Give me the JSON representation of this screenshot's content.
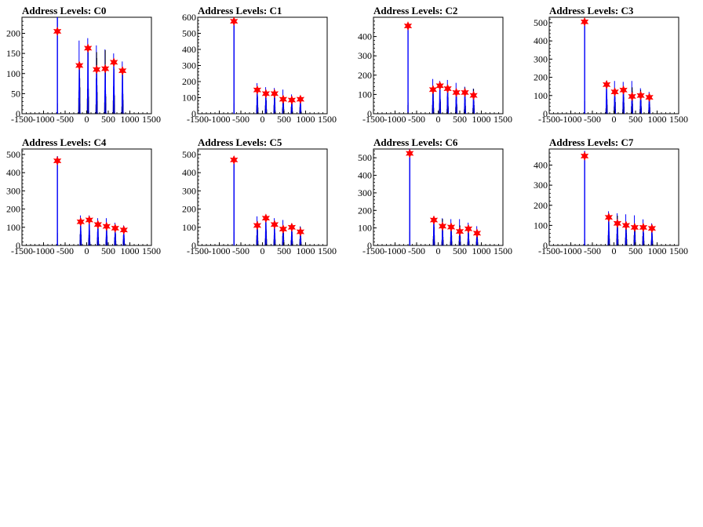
{
  "figure": {
    "background": "#ffffff",
    "raw_color": "#000000",
    "smoothed_color": "#0000ff",
    "marker_color": "#ff0000",
    "marker_shape": "star"
  },
  "chart_data": [
    {
      "type": "histogram",
      "title": "Address Levels: C0",
      "xlim": [
        -1500,
        1500
      ],
      "ylim": [
        0,
        240
      ],
      "x_ticks": [
        "-1500",
        "-1000",
        "-500",
        "0",
        "500",
        "1000",
        "1500"
      ],
      "x_tick_values": [
        -1500,
        -1000,
        -500,
        0,
        500,
        1000,
        1500
      ],
      "y_ticks": [
        "0",
        "50",
        "100",
        "150",
        "200"
      ],
      "y_tick_values": [
        0,
        50,
        100,
        150,
        200
      ],
      "peaks": [
        {
          "x": -680,
          "y": 240,
          "marker_y": 205
        },
        {
          "x": -170,
          "y": 182,
          "marker_y": 120
        },
        {
          "x": 30,
          "y": 188,
          "marker_y": 163
        },
        {
          "x": 230,
          "y": 170,
          "marker_y": 110
        },
        {
          "x": 430,
          "y": 160,
          "marker_y": 112
        },
        {
          "x": 630,
          "y": 150,
          "marker_y": 128
        },
        {
          "x": 830,
          "y": 130,
          "marker_y": 107
        }
      ]
    },
    {
      "type": "histogram",
      "title": "Address Levels: C1",
      "xlim": [
        -1500,
        1500
      ],
      "ylim": [
        0,
        600
      ],
      "x_ticks": [
        "-1500",
        "-1000",
        "-500",
        "0",
        "500",
        "1000",
        "1500"
      ],
      "x_tick_values": [
        -1500,
        -1000,
        -500,
        0,
        500,
        1000,
        1500
      ],
      "y_ticks": [
        "0",
        "100",
        "200",
        "300",
        "400",
        "500",
        "600"
      ],
      "y_tick_values": [
        0,
        100,
        200,
        300,
        400,
        500,
        600
      ],
      "peaks": [
        {
          "x": -660,
          "y": 580,
          "marker_y": 575
        },
        {
          "x": -120,
          "y": 190,
          "marker_y": 148
        },
        {
          "x": 80,
          "y": 165,
          "marker_y": 125
        },
        {
          "x": 280,
          "y": 160,
          "marker_y": 125
        },
        {
          "x": 480,
          "y": 150,
          "marker_y": 90
        },
        {
          "x": 680,
          "y": 120,
          "marker_y": 85
        },
        {
          "x": 880,
          "y": 110,
          "marker_y": 90
        }
      ]
    },
    {
      "type": "histogram",
      "title": "Address Levels: C2",
      "xlim": [
        -1500,
        1500
      ],
      "ylim": [
        0,
        500
      ],
      "x_ticks": [
        "-1500",
        "-1000",
        "-500",
        "0",
        "500",
        "1000",
        "1500"
      ],
      "x_tick_values": [
        -1500,
        -1000,
        -500,
        0,
        500,
        1000,
        1500
      ],
      "y_ticks": [
        "0",
        "100",
        "200",
        "300",
        "400"
      ],
      "y_tick_values": [
        0,
        100,
        200,
        300,
        400
      ],
      "peaks": [
        {
          "x": -700,
          "y": 470,
          "marker_y": 455
        },
        {
          "x": -120,
          "y": 180,
          "marker_y": 125
        },
        {
          "x": 40,
          "y": 170,
          "marker_y": 145
        },
        {
          "x": 220,
          "y": 175,
          "marker_y": 130
        },
        {
          "x": 420,
          "y": 160,
          "marker_y": 110
        },
        {
          "x": 620,
          "y": 140,
          "marker_y": 110
        },
        {
          "x": 820,
          "y": 130,
          "marker_y": 95
        }
      ]
    },
    {
      "type": "histogram",
      "title": "Address Levels: C3",
      "xlim": [
        -1500,
        1500
      ],
      "ylim": [
        0,
        530
      ],
      "x_ticks": [
        "-1500",
        "-1000",
        "-500",
        "0",
        "500",
        "1000",
        "1500"
      ],
      "x_tick_values": [
        -1500,
        -1000,
        -500,
        0,
        500,
        1000,
        1500
      ],
      "y_ticks": [
        "0",
        "100",
        "200",
        "300",
        "400",
        "500"
      ],
      "y_tick_values": [
        0,
        100,
        200,
        300,
        400,
        500
      ],
      "peaks": [
        {
          "x": -680,
          "y": 520,
          "marker_y": 505
        },
        {
          "x": -170,
          "y": 180,
          "marker_y": 160
        },
        {
          "x": 20,
          "y": 180,
          "marker_y": 120
        },
        {
          "x": 220,
          "y": 175,
          "marker_y": 130
        },
        {
          "x": 420,
          "y": 180,
          "marker_y": 95
        },
        {
          "x": 620,
          "y": 140,
          "marker_y": 100
        },
        {
          "x": 820,
          "y": 120,
          "marker_y": 90
        }
      ]
    },
    {
      "type": "histogram",
      "title": "Address Levels: C4",
      "xlim": [
        -1500,
        1500
      ],
      "ylim": [
        0,
        530
      ],
      "x_ticks": [
        "-1500",
        "-1000",
        "-500",
        "0",
        "500",
        "1000",
        "1500"
      ],
      "x_tick_values": [
        -1500,
        -1000,
        -500,
        0,
        500,
        1000,
        1500
      ],
      "y_ticks": [
        "0",
        "100",
        "200",
        "300",
        "400",
        "500"
      ],
      "y_tick_values": [
        0,
        100,
        200,
        300,
        400,
        500
      ],
      "peaks": [
        {
          "x": -680,
          "y": 490,
          "marker_y": 465
        },
        {
          "x": -140,
          "y": 165,
          "marker_y": 130
        },
        {
          "x": 60,
          "y": 165,
          "marker_y": 140
        },
        {
          "x": 260,
          "y": 150,
          "marker_y": 115
        },
        {
          "x": 460,
          "y": 150,
          "marker_y": 105
        },
        {
          "x": 660,
          "y": 125,
          "marker_y": 95
        },
        {
          "x": 860,
          "y": 110,
          "marker_y": 85
        }
      ]
    },
    {
      "type": "histogram",
      "title": "Address Levels: C5",
      "xlim": [
        -1500,
        1500
      ],
      "ylim": [
        0,
        530
      ],
      "x_ticks": [
        "-1500",
        "-1000",
        "-500",
        "0",
        "500",
        "1000",
        "1500"
      ],
      "x_tick_values": [
        -1500,
        -1000,
        -500,
        0,
        500,
        1000,
        1500
      ],
      "y_ticks": [
        "0",
        "100",
        "200",
        "300",
        "400",
        "500"
      ],
      "y_tick_values": [
        0,
        100,
        200,
        300,
        400,
        500
      ],
      "peaks": [
        {
          "x": -660,
          "y": 490,
          "marker_y": 470
        },
        {
          "x": -120,
          "y": 160,
          "marker_y": 110
        },
        {
          "x": 80,
          "y": 165,
          "marker_y": 150
        },
        {
          "x": 280,
          "y": 150,
          "marker_y": 115
        },
        {
          "x": 480,
          "y": 140,
          "marker_y": 90
        },
        {
          "x": 680,
          "y": 120,
          "marker_y": 100
        },
        {
          "x": 880,
          "y": 105,
          "marker_y": 75
        }
      ]
    },
    {
      "type": "histogram",
      "title": "Address Levels: C6",
      "xlim": [
        -1500,
        1500
      ],
      "ylim": [
        0,
        550
      ],
      "x_ticks": [
        "-1500",
        "-1000",
        "-500",
        "0",
        "500",
        "1000",
        "1500"
      ],
      "x_tick_values": [
        -1500,
        -1000,
        -500,
        0,
        500,
        1000,
        1500
      ],
      "y_ticks": [
        "0",
        "100",
        "200",
        "300",
        "400",
        "500"
      ],
      "y_tick_values": [
        0,
        100,
        200,
        300,
        400,
        500
      ],
      "peaks": [
        {
          "x": -660,
          "y": 550,
          "marker_y": 525
        },
        {
          "x": -100,
          "y": 165,
          "marker_y": 145
        },
        {
          "x": 100,
          "y": 155,
          "marker_y": 110
        },
        {
          "x": 300,
          "y": 150,
          "marker_y": 105
        },
        {
          "x": 500,
          "y": 150,
          "marker_y": 80
        },
        {
          "x": 700,
          "y": 130,
          "marker_y": 95
        },
        {
          "x": 900,
          "y": 110,
          "marker_y": 70
        }
      ]
    },
    {
      "type": "histogram",
      "title": "Address Levels: C7",
      "xlim": [
        -1500,
        1500
      ],
      "ylim": [
        0,
        480
      ],
      "x_ticks": [
        "-1500",
        "-1000",
        "-500",
        "0",
        "500",
        "1000",
        "1500"
      ],
      "x_tick_values": [
        -1500,
        -1000,
        -500,
        0,
        500,
        1000,
        1500
      ],
      "y_ticks": [
        "0",
        "100",
        "200",
        "300",
        "400"
      ],
      "y_tick_values": [
        0,
        100,
        200,
        300,
        400
      ],
      "peaks": [
        {
          "x": -680,
          "y": 470,
          "marker_y": 445
        },
        {
          "x": -120,
          "y": 170,
          "marker_y": 140
        },
        {
          "x": 80,
          "y": 160,
          "marker_y": 110
        },
        {
          "x": 280,
          "y": 155,
          "marker_y": 100
        },
        {
          "x": 480,
          "y": 150,
          "marker_y": 90
        },
        {
          "x": 680,
          "y": 130,
          "marker_y": 90
        },
        {
          "x": 880,
          "y": 110,
          "marker_y": 85
        }
      ]
    }
  ]
}
